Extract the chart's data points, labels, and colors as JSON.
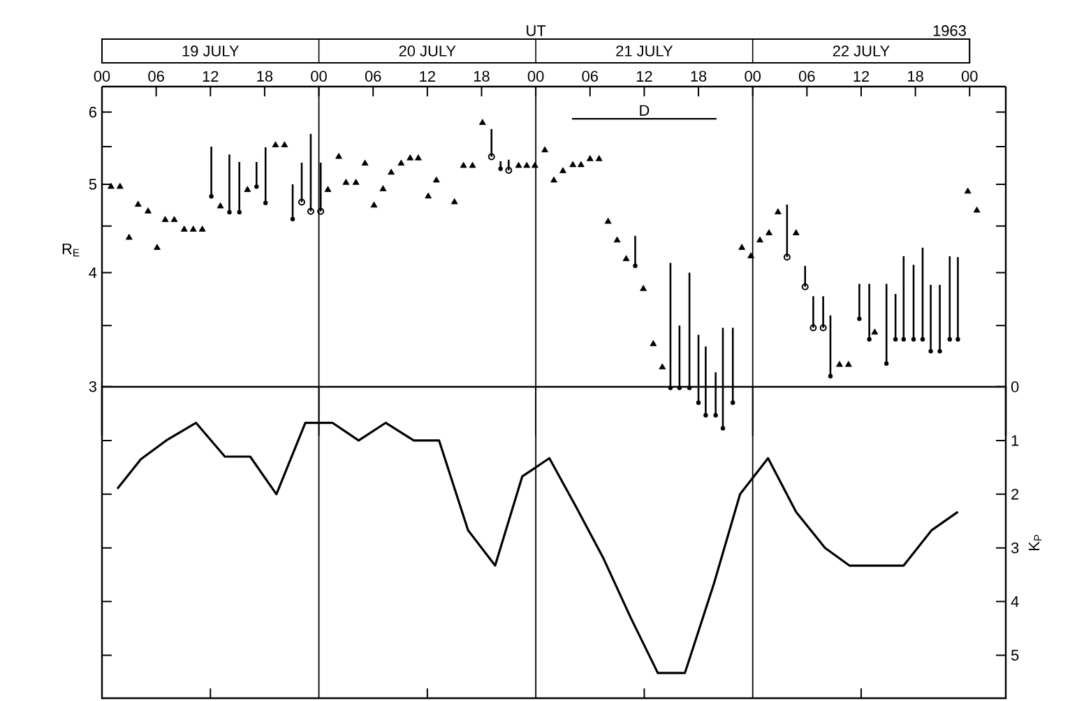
{
  "chart_data": [
    {
      "type": "scatter",
      "xlabel": "UT",
      "ylabel": "R$_{E}$",
      "log": "y",
      "xlim": [
        0,
        100
      ],
      "xticks": [
        {
          "value": 0,
          "label": "00"
        },
        {
          "value": 6,
          "label": "06"
        },
        {
          "value": 12,
          "label": "12"
        },
        {
          "value": 18,
          "label": "18"
        },
        {
          "value": 24,
          "label": "00"
        },
        {
          "value": 30,
          "label": "06"
        },
        {
          "value": 36,
          "label": "12"
        },
        {
          "value": 42,
          "label": "18"
        },
        {
          "value": 48,
          "label": "00"
        },
        {
          "value": 54,
          "label": "06"
        },
        {
          "value": 60,
          "label": "12"
        },
        {
          "value": 66,
          "label": "18"
        },
        {
          "value": 72,
          "label": "00"
        },
        {
          "value": 78,
          "label": "06"
        },
        {
          "value": 84,
          "label": "12"
        },
        {
          "value": 90,
          "label": "18"
        },
        {
          "value": 96,
          "label": "00"
        }
      ],
      "ylim": [
        2.65,
        6.4
      ],
      "yticks": [
        3,
        {
          "value": 3.5,
          "label": null
        },
        4,
        {
          "value": 4.5,
          "label": null
        },
        5,
        {
          "value": 5.5,
          "label": null
        },
        6
      ],
      "annotations": [
        "19 JULY",
        "20 JULY",
        "21 JULY",
        "22 JULY",
        "1963"
      ],
      "ref_lines": [
        {
          "axis": "x",
          "value": 24
        },
        {
          "axis": "x",
          "value": 48
        },
        {
          "axis": "x",
          "value": 72
        }
      ],
      "series": [
        {
          "color": "#000000",
          "marker": "triangle",
          "x": [
            1.0,
            2.0,
            3.0,
            4.0,
            5.1,
            6.1,
            7.0,
            8.0,
            9.1,
            10.1,
            11.1,
            13.1,
            16.1,
            19.2,
            20.2,
            25.0,
            26.2,
            27.0,
            28.1,
            29.1,
            30.1,
            31.1,
            32.0,
            33.1,
            34.1,
            35.0,
            36.1,
            37.0,
            39.0,
            40.0,
            41.0,
            42.1,
            46.1,
            47.0,
            47.9,
            49.0,
            50.0,
            51.0,
            52.1,
            53.0,
            54.0,
            55.0,
            56.0,
            57.0,
            58.0,
            59.9,
            61.0,
            62.0,
            70.8,
            71.8,
            72.8,
            73.8,
            74.8,
            76.8,
            81.6,
            82.6,
            85.5,
            95.8,
            96.8
          ],
          "values": [
            4.97,
            4.97,
            4.37,
            4.75,
            4.67,
            4.26,
            4.57,
            4.57,
            4.46,
            4.46,
            4.46,
            4.73,
            4.93,
            5.52,
            5.52,
            4.93,
            5.36,
            5.02,
            5.02,
            5.27,
            4.74,
            4.94,
            5.15,
            5.27,
            5.34,
            5.34,
            4.85,
            5.05,
            4.78,
            5.24,
            5.24,
            5.84,
            5.24,
            5.24,
            5.24,
            5.45,
            5.05,
            5.17,
            5.25,
            5.25,
            5.33,
            5.33,
            4.55,
            4.34,
            4.14,
            3.84,
            3.34,
            3.15,
            4.26,
            4.17,
            4.34,
            4.42,
            4.66,
            4.42,
            3.17,
            3.17,
            3.44,
            4.91,
            4.68
          ]
        },
        {
          "color": "#000000",
          "marker": "none",
          "x": [
            12.1,
            14.1,
            15.2,
            17.1,
            18.1,
            21.1,
            44.1,
            59.0,
            62.9,
            63.9,
            65.0,
            66.0,
            66.8,
            67.9,
            68.7,
            69.8,
            80.6,
            83.8,
            84.9,
            86.8,
            87.8,
            88.7,
            89.8,
            90.8,
            91.7,
            92.7,
            93.8,
            94.7
          ],
          "values": [
            4.85,
            4.66,
            4.66,
            4.97,
            4.77,
            4.58,
            5.2,
            4.07,
            2.99,
            2.99,
            2.99,
            2.88,
            2.79,
            2.79,
            2.7,
            2.88,
            3.08,
            3.56,
            3.38,
            3.18,
            3.38,
            3.38,
            3.38,
            3.38,
            3.28,
            3.28,
            3.38,
            3.38
          ],
          "errors": [
            [
              4.85,
              5.5
            ],
            [
              4.66,
              5.39
            ],
            [
              4.66,
              5.29
            ],
            [
              4.97,
              5.29
            ],
            [
              4.77,
              5.49
            ],
            [
              4.58,
              5.0
            ],
            [
              5.2,
              5.3
            ],
            [
              4.07,
              4.39
            ],
            [
              2.99,
              4.1
            ],
            [
              2.99,
              3.5
            ],
            [
              2.99,
              4.0
            ],
            [
              2.88,
              3.42
            ],
            [
              2.79,
              3.32
            ],
            [
              2.79,
              3.11
            ],
            [
              2.7,
              3.48
            ],
            [
              2.88,
              3.48
            ],
            [
              3.08,
              3.59
            ],
            [
              3.56,
              3.89
            ],
            [
              3.38,
              3.89
            ],
            [
              3.18,
              3.89
            ],
            [
              3.38,
              3.79
            ],
            [
              3.38,
              4.17
            ],
            [
              3.38,
              4.08
            ],
            [
              3.38,
              4.26
            ],
            [
              3.28,
              3.88
            ],
            [
              3.28,
              3.88
            ],
            [
              3.38,
              4.17
            ],
            [
              3.38,
              4.16
            ]
          ]
        },
        {
          "color": "#000000",
          "marker": "circle",
          "x": [
            22.1,
            23.1,
            24.2,
            43.1,
            45.0,
            75.8,
            77.8,
            78.7,
            79.8
          ],
          "values": [
            4.78,
            4.67,
            4.67,
            5.36,
            5.18,
            4.16,
            3.86,
            3.48,
            3.48
          ],
          "errors": [
            [
              4.78,
              5.28
            ],
            [
              4.67,
              5.68
            ],
            [
              4.67,
              5.28
            ],
            [
              5.36,
              5.75
            ],
            [
              5.18,
              5.32
            ],
            [
              4.16,
              4.75
            ],
            [
              3.86,
              4.07
            ],
            [
              3.48,
              3.77
            ],
            [
              3.48,
              3.77
            ]
          ]
        },
        {
          "type": "line",
          "name": "D",
          "color": "#000000",
          "x": [
            52,
            68
          ],
          "values": [
            5.9,
            5.9
          ]
        }
      ]
    },
    {
      "type": "line",
      "ylabel": "K$_{P}$",
      "tick_labels": "y",
      "xlim": [
        0,
        100
      ],
      "xticks": [
        {
          "value": 12,
          "label": null
        },
        {
          "value": 36,
          "label": null
        },
        {
          "value": 60,
          "label": null
        },
        {
          "value": 84,
          "label": null
        }
      ],
      "ylim": [
        5.8,
        0
      ],
      "yticks": [
        0,
        1,
        2,
        3,
        4,
        5
      ],
      "ref_lines": [
        {
          "axis": "x",
          "value": 24
        },
        {
          "axis": "x",
          "value": 48
        },
        {
          "axis": "x",
          "value": 72
        }
      ],
      "series": [
        {
          "color": "#000000",
          "x": [
            1.7,
            4.3,
            7.1,
            10.4,
            13.6,
            16.4,
            19.3,
            22.5,
            25.5,
            28.4,
            31.4,
            34.5,
            37.3,
            40.5,
            43.5,
            46.5,
            49.5,
            52.5,
            55.5,
            58.5,
            61.5,
            64.5,
            67.7,
            70.6,
            73.7,
            76.8,
            80.0,
            82.7,
            85.7,
            88.7,
            91.8,
            94.7
          ],
          "values": [
            1.9,
            1.35,
            1.0,
            0.67,
            1.3,
            1.3,
            2.0,
            0.67,
            0.67,
            1.0,
            0.67,
            1.0,
            1.0,
            2.67,
            3.33,
            1.67,
            1.33,
            2.25,
            3.2,
            4.3,
            5.33,
            5.33,
            3.67,
            2.0,
            1.33,
            2.33,
            3.0,
            3.33,
            3.33,
            3.33,
            2.67,
            2.33
          ]
        }
      ]
    }
  ]
}
